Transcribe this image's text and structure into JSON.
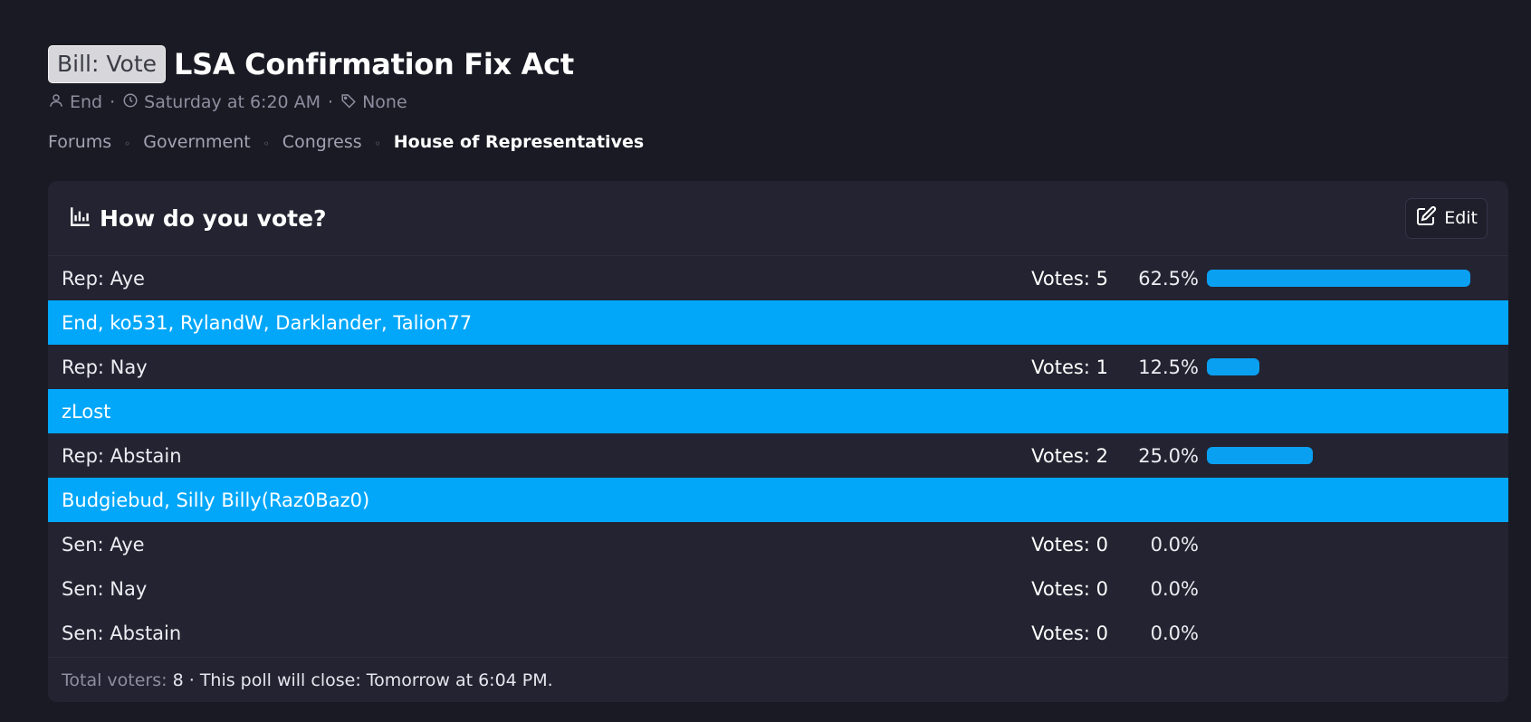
{
  "thread": {
    "prefix": "Bill: Vote",
    "title": "LSA Confirmation Fix Act",
    "author": "End",
    "date": "Saturday at 6:20 AM",
    "tags": "None",
    "dot": "·"
  },
  "breadcrumb": {
    "items": [
      "Forums",
      "Government",
      "Congress",
      "House of Representatives"
    ],
    "separator": "◦"
  },
  "poll": {
    "question": "How do you vote?",
    "edit_label": "Edit",
    "votes_label": "Votes:",
    "options": [
      {
        "label": "Rep: Aye",
        "votes": "5",
        "percent": "62.5%",
        "fraction": 0.625,
        "voters": "End, ko531, RylandW, Darklander, Talion77"
      },
      {
        "label": "Rep: Nay",
        "votes": "1",
        "percent": "12.5%",
        "fraction": 0.125,
        "voters": "zLost"
      },
      {
        "label": "Rep: Abstain",
        "votes": "2",
        "percent": "25.0%",
        "fraction": 0.25,
        "voters": "Budgiebud, Silly Billy(Raz0Baz0)"
      },
      {
        "label": "Sen: Aye",
        "votes": "0",
        "percent": "0.0%",
        "fraction": 0
      },
      {
        "label": "Sen: Nay",
        "votes": "0",
        "percent": "0.0%",
        "fraction": 0
      },
      {
        "label": "Sen: Abstain",
        "votes": "0",
        "percent": "0.0%",
        "fraction": 0
      }
    ],
    "footer": {
      "total_label": "Total voters:",
      "total": "8",
      "close_text": "· This poll will close: Tomorrow at 6:04 PM."
    }
  },
  "colors": {
    "accent": "#02a7fa",
    "bar": "#0aa0f2",
    "background": "#1a1a24",
    "panel": "#232331"
  }
}
